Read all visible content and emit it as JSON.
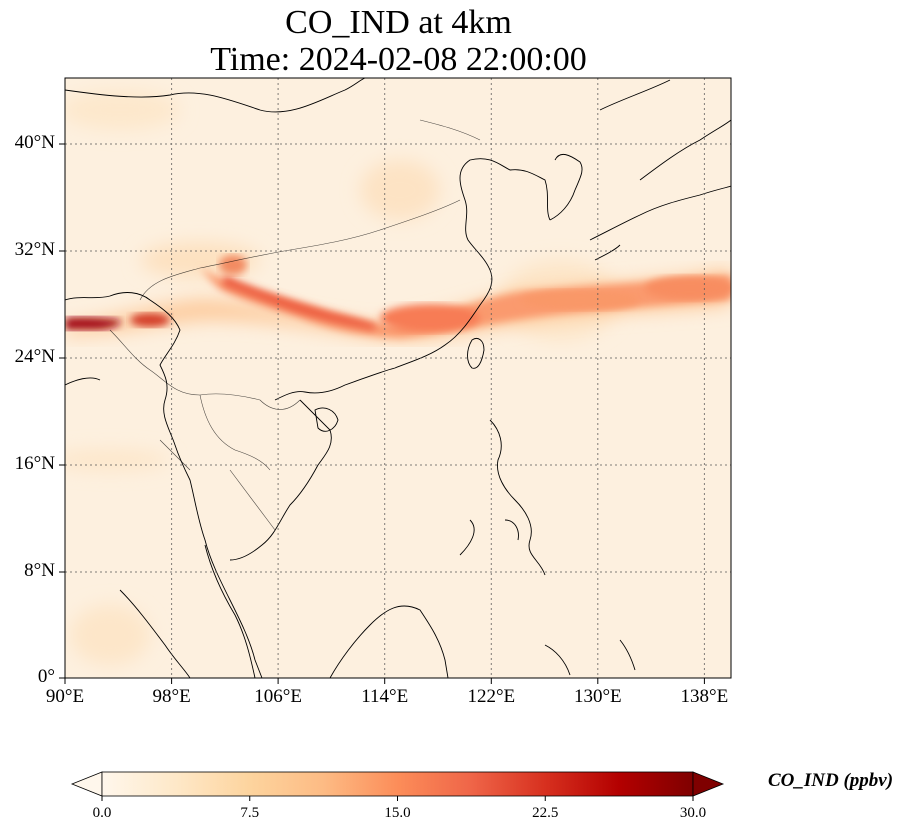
{
  "title_line1": "CO_IND at 4km",
  "title_line2": "Time: 2024-02-08 22:00:00",
  "map": {
    "lon_range": [
      90,
      140
    ],
    "lat_range": [
      0,
      44
    ],
    "lon_ticks": [
      "90°E",
      "98°E",
      "106°E",
      "114°E",
      "122°E",
      "130°E",
      "138°E"
    ],
    "lat_ticks": [
      "0°",
      "8°N",
      "16°N",
      "24°N",
      "32°N",
      "40°N"
    ],
    "gridlines": "dotted",
    "colormap": "OrRd"
  },
  "colorbar": {
    "label": "CO_IND (ppbv)",
    "ticks": [
      "0.0",
      "7.5",
      "15.0",
      "22.5",
      "30.0"
    ],
    "range": [
      0,
      30
    ],
    "extend": "both",
    "colors": [
      "#fff7ec",
      "#fee8c8",
      "#fdd49e",
      "#fdbb84",
      "#fc8d59",
      "#ef6548",
      "#d7301f",
      "#b30000",
      "#7f0000"
    ]
  }
}
